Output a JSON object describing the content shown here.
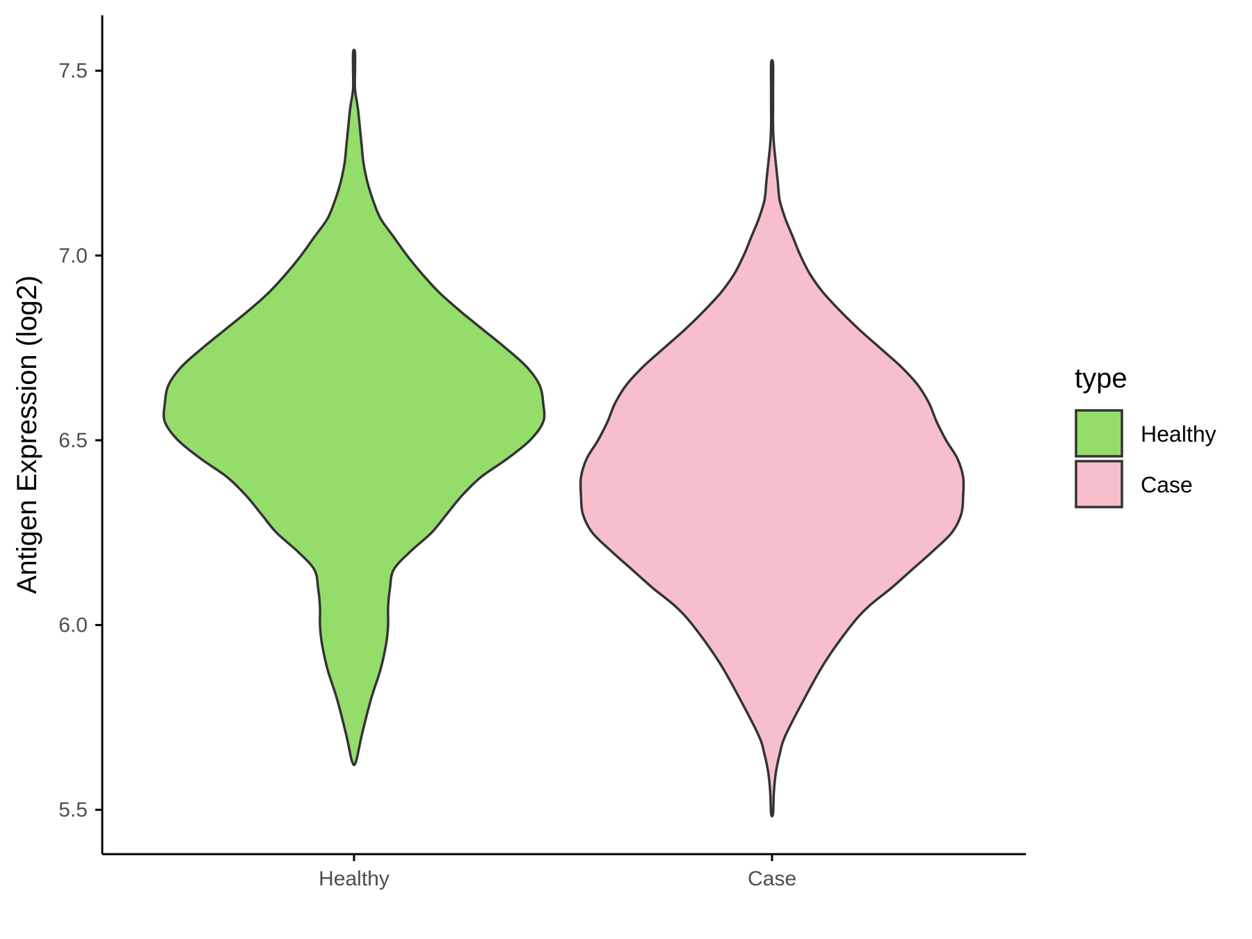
{
  "chart_data": {
    "type": "violin",
    "xlabel": "",
    "ylabel": "Antigen Expression (log2)",
    "ylim": [
      5.38,
      7.65
    ],
    "yticks": [
      "5.5",
      "6.0",
      "6.5",
      "7.0",
      "7.5"
    ],
    "categories": [
      "Healthy",
      "Case"
    ],
    "grid": false,
    "legend": {
      "title": "type",
      "position": "right",
      "entries": [
        "Healthy",
        "Case"
      ]
    },
    "series": [
      {
        "name": "Healthy",
        "color": "#95dd6b",
        "y_min": 5.63,
        "y_max": 7.55,
        "density_profile": [
          [
            5.63,
            0.01
          ],
          [
            5.7,
            0.04
          ],
          [
            5.8,
            0.09
          ],
          [
            5.88,
            0.14
          ],
          [
            5.95,
            0.17
          ],
          [
            6.0,
            0.18
          ],
          [
            6.05,
            0.18
          ],
          [
            6.1,
            0.19
          ],
          [
            6.15,
            0.21
          ],
          [
            6.2,
            0.3
          ],
          [
            6.25,
            0.41
          ],
          [
            6.3,
            0.49
          ],
          [
            6.35,
            0.57
          ],
          [
            6.4,
            0.67
          ],
          [
            6.45,
            0.81
          ],
          [
            6.5,
            0.93
          ],
          [
            6.55,
            1.0
          ],
          [
            6.6,
            1.0
          ],
          [
            6.65,
            0.98
          ],
          [
            6.7,
            0.91
          ],
          [
            6.75,
            0.8
          ],
          [
            6.8,
            0.68
          ],
          [
            6.85,
            0.56
          ],
          [
            6.9,
            0.45
          ],
          [
            6.95,
            0.36
          ],
          [
            7.0,
            0.28
          ],
          [
            7.05,
            0.21
          ],
          [
            7.1,
            0.14
          ],
          [
            7.15,
            0.1
          ],
          [
            7.2,
            0.07
          ],
          [
            7.25,
            0.05
          ],
          [
            7.3,
            0.04
          ],
          [
            7.35,
            0.03
          ],
          [
            7.4,
            0.02
          ],
          [
            7.45,
            0.005
          ],
          [
            7.5,
            0.005
          ],
          [
            7.55,
            0.005
          ]
        ]
      },
      {
        "name": "Case",
        "color": "#f7bfcb",
        "y_min": 5.49,
        "y_max": 7.52,
        "density_profile": [
          [
            5.49,
            0.005
          ],
          [
            5.55,
            0.01
          ],
          [
            5.6,
            0.02
          ],
          [
            5.65,
            0.04
          ],
          [
            5.7,
            0.07
          ],
          [
            5.8,
            0.17
          ],
          [
            5.9,
            0.28
          ],
          [
            6.0,
            0.42
          ],
          [
            6.05,
            0.51
          ],
          [
            6.1,
            0.63
          ],
          [
            6.15,
            0.74
          ],
          [
            6.2,
            0.85
          ],
          [
            6.25,
            0.95
          ],
          [
            6.3,
            1.0
          ],
          [
            6.35,
            1.01
          ],
          [
            6.4,
            1.01
          ],
          [
            6.45,
            0.98
          ],
          [
            6.5,
            0.92
          ],
          [
            6.55,
            0.87
          ],
          [
            6.6,
            0.83
          ],
          [
            6.65,
            0.77
          ],
          [
            6.7,
            0.68
          ],
          [
            6.75,
            0.57
          ],
          [
            6.8,
            0.46
          ],
          [
            6.85,
            0.36
          ],
          [
            6.9,
            0.27
          ],
          [
            6.95,
            0.2
          ],
          [
            7.0,
            0.15
          ],
          [
            7.05,
            0.11
          ],
          [
            7.1,
            0.07
          ],
          [
            7.15,
            0.04
          ],
          [
            7.2,
            0.03
          ],
          [
            7.25,
            0.02
          ],
          [
            7.3,
            0.01
          ],
          [
            7.35,
            0.005
          ],
          [
            7.4,
            0.005
          ],
          [
            7.45,
            0.005
          ],
          [
            7.52,
            0.005
          ]
        ]
      }
    ]
  }
}
